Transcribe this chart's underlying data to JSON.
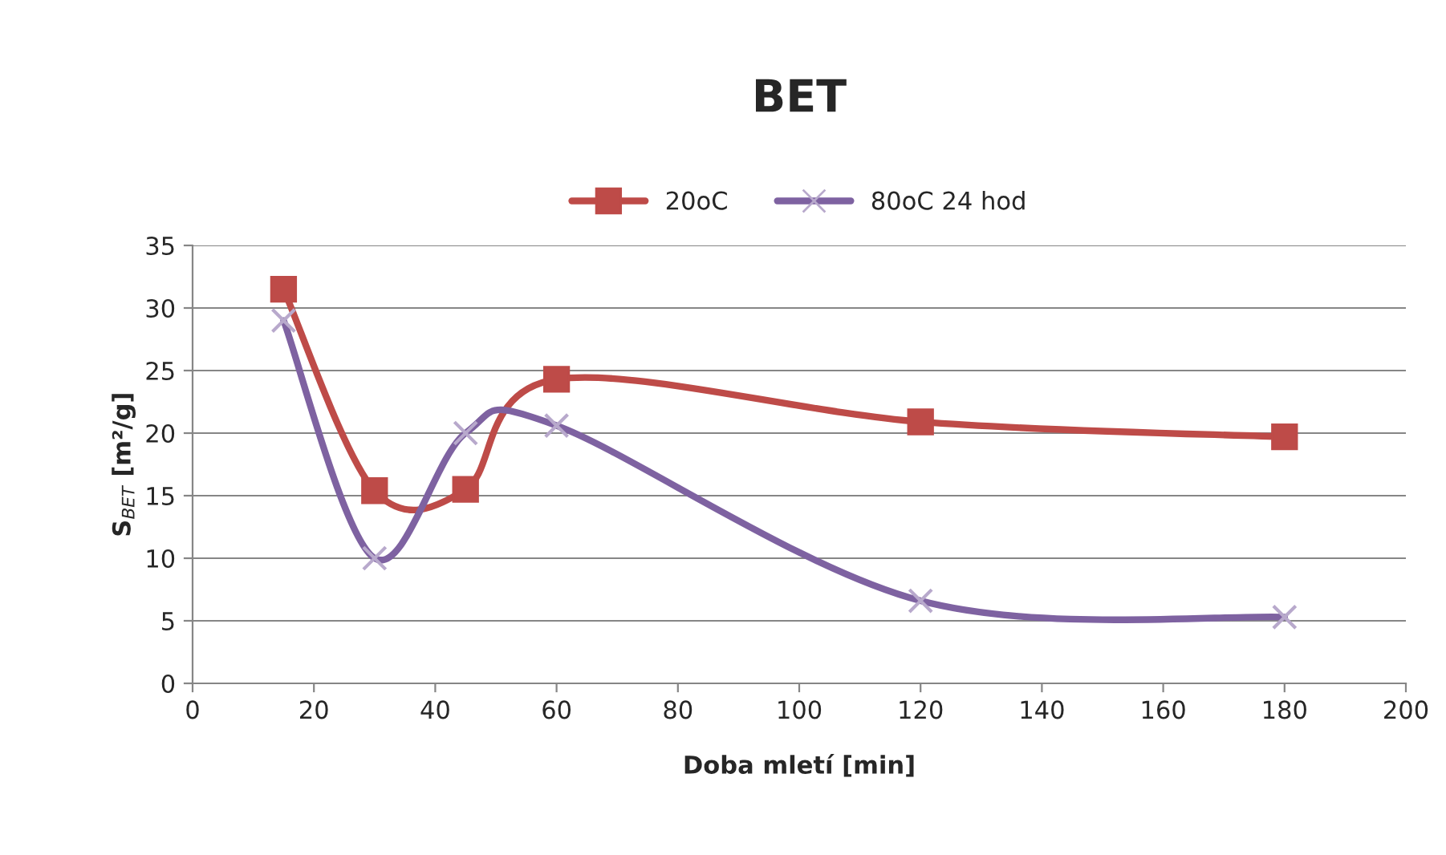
{
  "chart_data": {
    "type": "line",
    "title": "BET",
    "xlabel": "Doba mletí [min]",
    "ylabel": "S$_{BET}$ [m²/g]",
    "x": [
      15,
      30,
      45,
      60,
      120,
      180
    ],
    "series": [
      {
        "name": "20oC",
        "color": "#be4b48",
        "marker": "square",
        "values": [
          31.5,
          15.4,
          15.5,
          24.3,
          20.9,
          19.7
        ]
      },
      {
        "name": "80oC 24 hod",
        "color": "#7e62a1",
        "marker": "cross",
        "values": [
          29,
          10,
          20,
          20.6,
          6.6,
          5.3
        ]
      }
    ],
    "xlim": [
      0,
      200
    ],
    "xticks": [
      0,
      20,
      40,
      60,
      80,
      100,
      120,
      140,
      160,
      180,
      200
    ],
    "ylim": [
      0,
      35
    ],
    "yticks": [
      0,
      5,
      10,
      15,
      20,
      25,
      30,
      35
    ],
    "grid": "y",
    "legend": "top",
    "line_style": "solid"
  }
}
